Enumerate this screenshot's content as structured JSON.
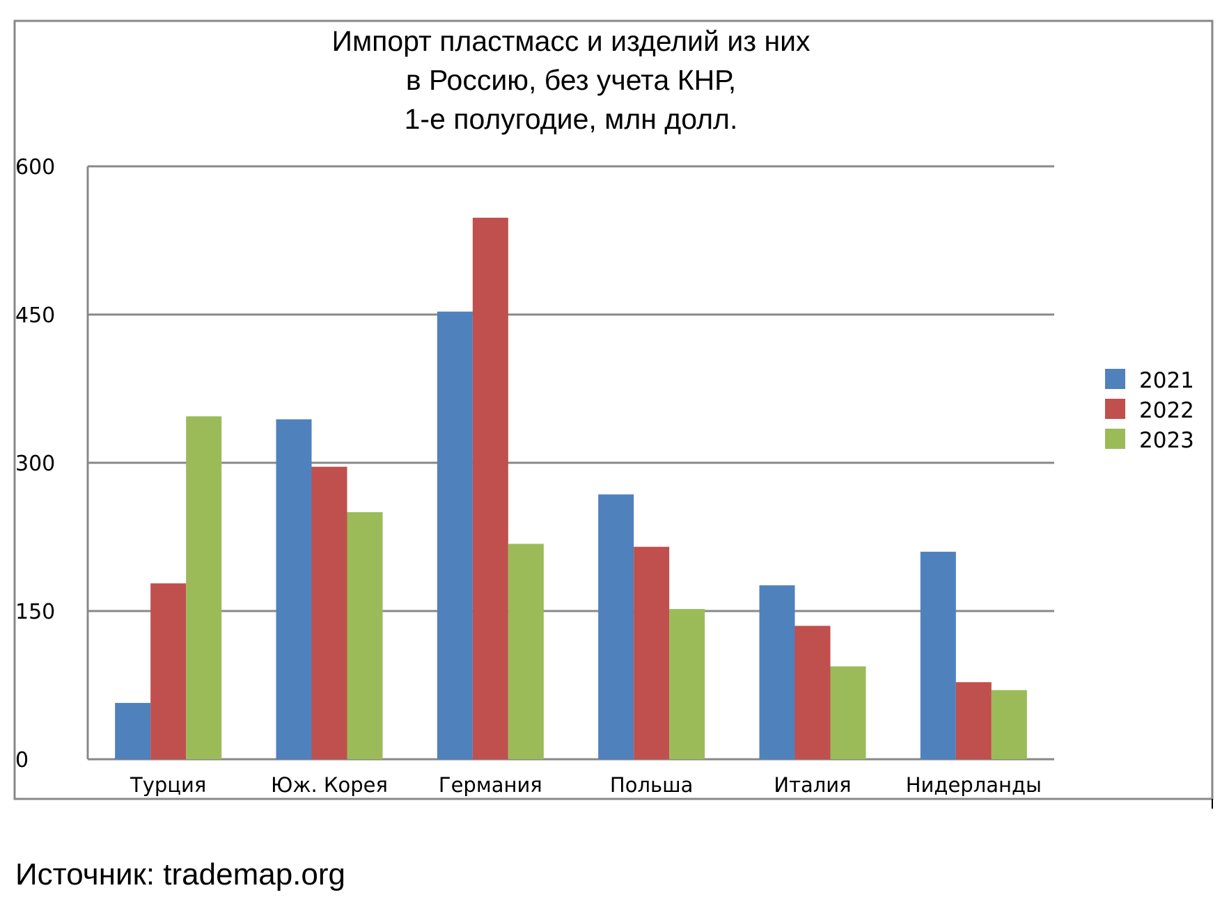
{
  "chart_data": {
    "type": "bar",
    "title": [
      "Импорт пластмасс и изделий из них",
      "в Россию, без учета КНР,",
      "1-е полугодие, млн долл."
    ],
    "categories": [
      "Турция",
      "Юж. Корея",
      "Германия",
      "Польша",
      "Италия",
      "Нидерланды"
    ],
    "series": [
      {
        "name": "2021",
        "color": "#4F81BD",
        "values": [
          57,
          344,
          453,
          268,
          176,
          210
        ]
      },
      {
        "name": "2022",
        "color": "#C0504D",
        "values": [
          178,
          296,
          548,
          215,
          135,
          78
        ]
      },
      {
        "name": "2023",
        "color": "#9BBB59",
        "values": [
          347,
          250,
          218,
          152,
          94,
          70
        ]
      }
    ],
    "yticks": [
      "0",
      "150",
      "300",
      "450",
      "600"
    ],
    "ylim": [
      0,
      600
    ],
    "grid": true,
    "legend": "right"
  },
  "source": "Источник: trademap.org"
}
